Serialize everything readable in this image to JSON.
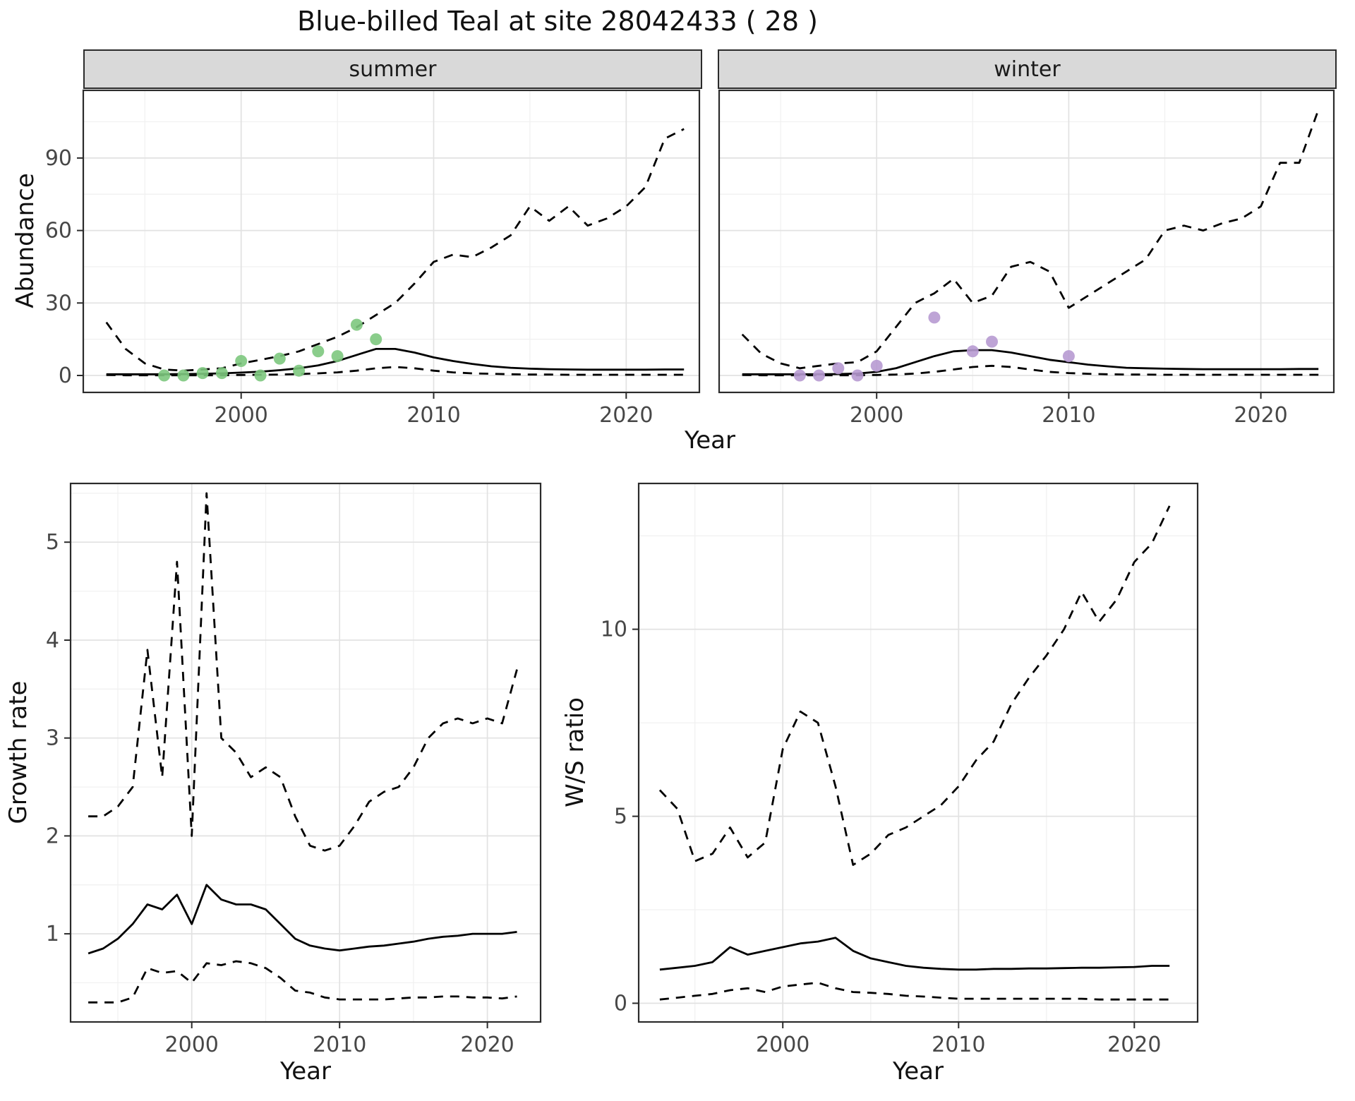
{
  "title": "Blue-billed Teal at site 28042433 ( 28 )",
  "top_xlabel": "Year",
  "top_ylabel": "Abundance",
  "colors": {
    "strip_background": "#d9d9d9",
    "line": "#000000",
    "summer_points": "#7dc87e",
    "winter_points": "#b79ad1"
  },
  "chart_data": [
    {
      "id": "abundance-summer",
      "type": "line",
      "facet_label": "summer",
      "xlabel": "Year",
      "ylabel": "Abundance",
      "xlim": [
        1991.8,
        2023.8
      ],
      "ylim": [
        -7,
        118
      ],
      "xticks": [
        2000,
        2010,
        2020
      ],
      "xminor": [
        1995,
        2005,
        2015
      ],
      "yticks": [
        0,
        30,
        60,
        90
      ],
      "yminor": [
        15,
        45,
        75,
        105
      ],
      "show_y_tick_labels": true,
      "years": [
        1993,
        1994,
        1995,
        1996,
        1997,
        1998,
        1999,
        2000,
        2001,
        2002,
        2003,
        2004,
        2005,
        2006,
        2007,
        2008,
        2009,
        2010,
        2011,
        2012,
        2013,
        2014,
        2015,
        2016,
        2017,
        2018,
        2019,
        2020,
        2021,
        2022,
        2023
      ],
      "series": [
        {
          "name": "upper-ci",
          "style": "dashed",
          "color": "#000000",
          "values": [
            22,
            11,
            5,
            2.5,
            2,
            2.5,
            3,
            5,
            6.5,
            8,
            10,
            13,
            16,
            20,
            25,
            30,
            38,
            47,
            50,
            49,
            53,
            58,
            70,
            64,
            70,
            62,
            65,
            70,
            78,
            98,
            102
          ]
        },
        {
          "name": "median",
          "style": "solid",
          "color": "#000000",
          "values": [
            0.5,
            0.5,
            0.5,
            0.5,
            0.6,
            0.7,
            0.9,
            1.2,
            1.6,
            2.2,
            3,
            4.2,
            6,
            8.5,
            11,
            11,
            9.5,
            7.5,
            6,
            4.8,
            3.8,
            3.2,
            2.8,
            2.6,
            2.5,
            2.4,
            2.4,
            2.4,
            2.4,
            2.5,
            2.5
          ]
        },
        {
          "name": "lower-ci",
          "style": "dashed",
          "color": "#000000",
          "values": [
            0.2,
            0.1,
            0.1,
            0.1,
            0.1,
            0.1,
            0.1,
            0.2,
            0.3,
            0.4,
            0.6,
            0.9,
            1.3,
            2,
            3,
            3.5,
            3,
            2,
            1.3,
            0.9,
            0.7,
            0.5,
            0.4,
            0.4,
            0.3,
            0.3,
            0.3,
            0.3,
            0.3,
            0.3,
            0.3
          ]
        }
      ],
      "points": {
        "name": "observed-counts",
        "color": "#7dc87e",
        "x": [
          1996,
          1997,
          1998,
          1999,
          2000,
          2001,
          2002,
          2003,
          2004,
          2005,
          2006,
          2007
        ],
        "y": [
          0,
          0,
          1,
          1,
          6,
          0,
          7,
          2,
          10,
          8,
          21,
          15
        ]
      }
    },
    {
      "id": "abundance-winter",
      "type": "line",
      "facet_label": "winter",
      "xlabel": "Year",
      "ylabel": "Abundance",
      "xlim": [
        1991.8,
        2023.8
      ],
      "ylim": [
        -7,
        118
      ],
      "xticks": [
        2000,
        2010,
        2020
      ],
      "xminor": [
        1995,
        2005,
        2015
      ],
      "yticks": [
        0,
        30,
        60,
        90
      ],
      "yminor": [
        15,
        45,
        75,
        105
      ],
      "show_y_tick_labels": false,
      "years": [
        1993,
        1994,
        1995,
        1996,
        1997,
        1998,
        1999,
        2000,
        2001,
        2002,
        2003,
        2004,
        2005,
        2006,
        2007,
        2008,
        2009,
        2010,
        2011,
        2012,
        2013,
        2014,
        2015,
        2016,
        2017,
        2018,
        2019,
        2020,
        2021,
        2022,
        2023
      ],
      "series": [
        {
          "name": "upper-ci",
          "style": "dashed",
          "color": "#000000",
          "values": [
            17,
            9,
            5,
            3,
            4,
            5,
            5.5,
            10,
            20,
            30,
            34,
            40,
            30,
            33,
            45,
            47,
            43,
            28,
            33,
            38,
            43,
            48,
            60,
            62,
            60,
            63,
            65,
            70,
            88,
            88,
            110
          ]
        },
        {
          "name": "median",
          "style": "solid",
          "color": "#000000",
          "values": [
            0.5,
            0.5,
            0.5,
            0.5,
            0.5,
            0.6,
            0.8,
            1.5,
            3,
            5.5,
            8,
            10,
            10.5,
            10.5,
            9.5,
            8,
            6.5,
            5.5,
            4.5,
            3.8,
            3.2,
            3,
            2.8,
            2.7,
            2.6,
            2.6,
            2.6,
            2.6,
            2.6,
            2.7,
            2.7
          ]
        },
        {
          "name": "lower-ci",
          "style": "dashed",
          "color": "#000000",
          "values": [
            0.2,
            0.1,
            0.1,
            0.1,
            0.1,
            0.1,
            0.1,
            0.2,
            0.4,
            0.8,
            1.5,
            2.5,
            3.5,
            4,
            3.5,
            2.5,
            1.5,
            1,
            0.7,
            0.5,
            0.4,
            0.4,
            0.3,
            0.3,
            0.3,
            0.3,
            0.3,
            0.3,
            0.3,
            0.3,
            0.3
          ]
        }
      ],
      "points": {
        "name": "observed-counts",
        "color": "#b79ad1",
        "x": [
          1996,
          1997,
          1998,
          1999,
          2000,
          2003,
          2005,
          2006,
          2010
        ],
        "y": [
          0,
          0,
          3,
          0,
          4,
          24,
          10,
          14,
          8
        ]
      }
    },
    {
      "id": "growth-rate",
      "type": "line",
      "facet_label": "",
      "xlabel": "Year",
      "ylabel": "Growth rate",
      "xlim": [
        1991.8,
        2023.6
      ],
      "ylim": [
        0.1,
        5.6
      ],
      "xticks": [
        2000,
        2010,
        2020
      ],
      "xminor": [
        1995,
        2005,
        2015
      ],
      "yticks": [
        1,
        2,
        3,
        4,
        5
      ],
      "yminor": [
        0.5,
        1.5,
        2.5,
        3.5,
        4.5,
        5.5
      ],
      "show_y_tick_labels": true,
      "years": [
        1993,
        1994,
        1995,
        1996,
        1997,
        1998,
        1999,
        2000,
        2001,
        2002,
        2003,
        2004,
        2005,
        2006,
        2007,
        2008,
        2009,
        2010,
        2011,
        2012,
        2013,
        2014,
        2015,
        2016,
        2017,
        2018,
        2019,
        2020,
        2021,
        2022
      ],
      "series": [
        {
          "name": "upper-ci",
          "style": "dashed",
          "color": "#000000",
          "values": [
            2.2,
            2.2,
            2.3,
            2.5,
            3.9,
            2.6,
            4.8,
            2.0,
            5.5,
            3.0,
            2.85,
            2.6,
            2.7,
            2.6,
            2.2,
            1.9,
            1.85,
            1.9,
            2.1,
            2.35,
            2.45,
            2.5,
            2.7,
            3.0,
            3.15,
            3.2,
            3.15,
            3.2,
            3.15,
            3.7
          ]
        },
        {
          "name": "median",
          "style": "solid",
          "color": "#000000",
          "values": [
            0.8,
            0.85,
            0.95,
            1.1,
            1.3,
            1.25,
            1.4,
            1.1,
            1.5,
            1.35,
            1.3,
            1.3,
            1.25,
            1.1,
            0.95,
            0.88,
            0.85,
            0.83,
            0.85,
            0.87,
            0.88,
            0.9,
            0.92,
            0.95,
            0.97,
            0.98,
            1.0,
            1.0,
            1.0,
            1.02
          ]
        },
        {
          "name": "lower-ci",
          "style": "dashed",
          "color": "#000000",
          "values": [
            0.3,
            0.3,
            0.3,
            0.35,
            0.65,
            0.6,
            0.62,
            0.5,
            0.7,
            0.68,
            0.72,
            0.7,
            0.65,
            0.55,
            0.42,
            0.4,
            0.35,
            0.33,
            0.33,
            0.33,
            0.33,
            0.34,
            0.35,
            0.35,
            0.36,
            0.36,
            0.35,
            0.35,
            0.34,
            0.36
          ]
        }
      ]
    },
    {
      "id": "ws-ratio",
      "type": "line",
      "facet_label": "",
      "xlabel": "Year",
      "ylabel": "W/S ratio",
      "xlim": [
        1991.8,
        2023.6
      ],
      "ylim": [
        -0.5,
        13.9
      ],
      "xticks": [
        2000,
        2010,
        2020
      ],
      "xminor": [
        1995,
        2005,
        2015
      ],
      "yticks": [
        0,
        5,
        10
      ],
      "yminor": [
        2.5,
        7.5,
        12.5
      ],
      "show_y_tick_labels": true,
      "years": [
        1993,
        1994,
        1995,
        1996,
        1997,
        1998,
        1999,
        2000,
        2001,
        2002,
        2003,
        2004,
        2005,
        2006,
        2007,
        2008,
        2009,
        2010,
        2011,
        2012,
        2013,
        2014,
        2015,
        2016,
        2017,
        2018,
        2019,
        2020,
        2021,
        2022
      ],
      "series": [
        {
          "name": "upper-ci",
          "style": "dashed",
          "color": "#000000",
          "values": [
            5.7,
            5.2,
            3.8,
            4.0,
            4.7,
            3.9,
            4.3,
            6.8,
            7.8,
            7.5,
            5.8,
            3.7,
            4.0,
            4.5,
            4.7,
            5.0,
            5.3,
            5.8,
            6.5,
            7.0,
            8.0,
            8.7,
            9.3,
            10.0,
            11.0,
            10.2,
            10.8,
            11.8,
            12.3,
            13.3
          ]
        },
        {
          "name": "median",
          "style": "solid",
          "color": "#000000",
          "values": [
            0.9,
            0.95,
            1.0,
            1.1,
            1.5,
            1.3,
            1.4,
            1.5,
            1.6,
            1.65,
            1.75,
            1.4,
            1.2,
            1.1,
            1.0,
            0.95,
            0.92,
            0.9,
            0.9,
            0.92,
            0.92,
            0.93,
            0.93,
            0.94,
            0.95,
            0.95,
            0.96,
            0.97,
            1.0,
            1.0
          ]
        },
        {
          "name": "lower-ci",
          "style": "dashed",
          "color": "#000000",
          "values": [
            0.1,
            0.15,
            0.2,
            0.25,
            0.35,
            0.4,
            0.3,
            0.45,
            0.5,
            0.55,
            0.4,
            0.3,
            0.28,
            0.25,
            0.2,
            0.18,
            0.15,
            0.12,
            0.12,
            0.12,
            0.12,
            0.12,
            0.12,
            0.12,
            0.12,
            0.1,
            0.1,
            0.1,
            0.1,
            0.1
          ]
        }
      ]
    }
  ]
}
